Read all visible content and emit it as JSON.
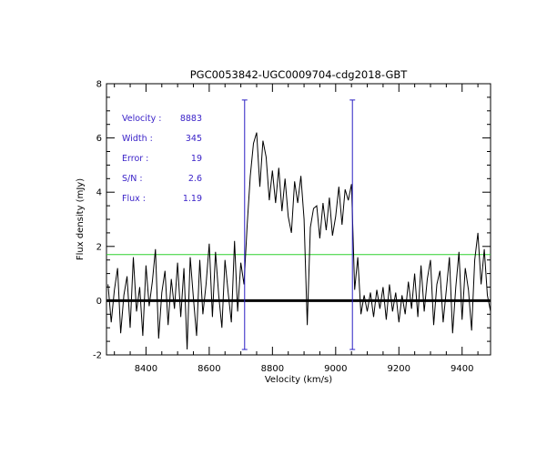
{
  "chart_data": {
    "type": "line",
    "title": "PGC0053842-UGC0009704-cdg2018-GBT",
    "xlabel": "Velocity (km/s)",
    "ylabel": "Flux density (mJy)",
    "xlim": [
      8275,
      9490
    ],
    "ylim": [
      -2,
      8
    ],
    "xticks": [
      8400,
      8600,
      8800,
      9000,
      9200,
      9400
    ],
    "yticks": [
      -2,
      0,
      2,
      4,
      6,
      8
    ],
    "colors": {
      "spectrum": "#000000",
      "markers": "#2a1fc4",
      "rms": "#2fd02f",
      "zero": "#000000"
    },
    "annotations": [
      {
        "label": "Velocity :",
        "value": "8883"
      },
      {
        "label": "Width :",
        "value": "345"
      },
      {
        "label": "Error :",
        "value": "19"
      },
      {
        "label": "S/N :",
        "value": "2.6"
      },
      {
        "label": "Flux :",
        "value": "1.19"
      }
    ],
    "velocity_markers": [
      8712,
      9053
    ],
    "marker_range": [
      -1.8,
      7.4
    ],
    "rms_level": 1.7,
    "zero_level": 0,
    "series": [
      {
        "name": "spectrum",
        "x": [
          8280,
          8290,
          8300,
          8310,
          8320,
          8330,
          8340,
          8350,
          8360,
          8370,
          8380,
          8390,
          8400,
          8410,
          8420,
          8430,
          8440,
          8450,
          8460,
          8470,
          8480,
          8490,
          8500,
          8510,
          8520,
          8530,
          8540,
          8550,
          8560,
          8570,
          8580,
          8590,
          8600,
          8610,
          8620,
          8630,
          8640,
          8650,
          8660,
          8670,
          8680,
          8690,
          8700,
          8710,
          8720,
          8730,
          8740,
          8750,
          8760,
          8770,
          8780,
          8790,
          8800,
          8810,
          8820,
          8830,
          8840,
          8850,
          8860,
          8870,
          8880,
          8890,
          8900,
          8910,
          8920,
          8930,
          8940,
          8950,
          8960,
          8970,
          8980,
          8990,
          9000,
          9010,
          9020,
          9030,
          9040,
          9050,
          9060,
          9070,
          9080,
          9090,
          9100,
          9110,
          9120,
          9130,
          9140,
          9150,
          9160,
          9170,
          9180,
          9190,
          9200,
          9210,
          9220,
          9230,
          9240,
          9250,
          9260,
          9270,
          9280,
          9290,
          9300,
          9310,
          9320,
          9330,
          9340,
          9350,
          9360,
          9370,
          9380,
          9390,
          9400,
          9410,
          9420,
          9430,
          9440,
          9450,
          9460,
          9470,
          9480,
          9490
        ],
        "y": [
          0.6,
          -0.8,
          0.4,
          1.2,
          -1.2,
          0.2,
          0.9,
          -1.0,
          1.6,
          -0.4,
          0.5,
          -1.3,
          1.3,
          -0.2,
          0.7,
          1.9,
          -1.4,
          0.3,
          1.1,
          -0.9,
          0.8,
          -0.3,
          1.4,
          -0.6,
          1.2,
          -1.8,
          1.6,
          0.1,
          -1.3,
          1.5,
          -0.5,
          0.6,
          2.1,
          -0.6,
          1.8,
          0.2,
          -1.0,
          1.5,
          0.3,
          -0.8,
          2.2,
          -0.4,
          1.4,
          0.6,
          2.8,
          4.6,
          5.8,
          6.2,
          4.2,
          5.9,
          5.3,
          3.7,
          4.8,
          3.6,
          4.9,
          3.3,
          4.5,
          3.1,
          2.5,
          4.4,
          3.6,
          4.6,
          3.0,
          -0.9,
          2.7,
          3.4,
          3.5,
          2.3,
          3.6,
          2.6,
          3.8,
          2.4,
          3.1,
          4.2,
          2.8,
          4.1,
          3.7,
          4.3,
          0.4,
          1.6,
          -0.5,
          0.2,
          -0.4,
          0.3,
          -0.6,
          0.4,
          -0.3,
          0.5,
          -0.7,
          0.6,
          -0.4,
          0.3,
          -0.8,
          0.2,
          -0.5,
          0.7,
          -0.3,
          1.0,
          -0.6,
          1.3,
          -0.4,
          0.8,
          1.5,
          -0.9,
          0.6,
          1.1,
          -0.8,
          0.4,
          1.6,
          -1.2,
          0.5,
          1.8,
          -0.7,
          1.2,
          0.4,
          -1.1,
          1.5,
          2.5,
          0.6,
          1.9,
          0.2,
          -0.4
        ]
      }
    ]
  }
}
